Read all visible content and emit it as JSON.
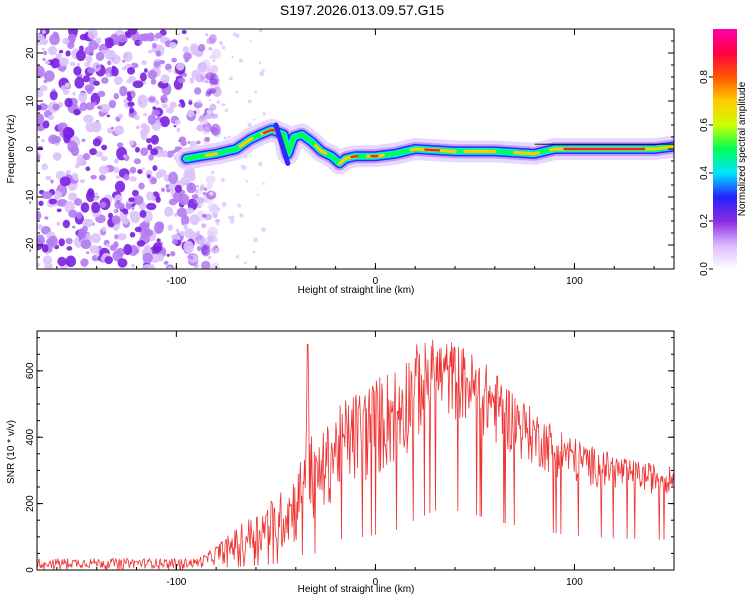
{
  "title": "S197.2026.013.09.57.G15",
  "chart_data": [
    {
      "type": "heatmap",
      "name": "spectrogram",
      "xlabel": "Height of straight line (km)",
      "ylabel": "Frequency (Hz)",
      "xlim": [
        -170,
        150
      ],
      "ylim": [
        -25,
        25
      ],
      "xticks": [
        -100,
        0,
        100
      ],
      "yticks": [
        -20,
        -10,
        0,
        10,
        20
      ],
      "colorbar": {
        "label": "Normalized spectral amplitude",
        "range": [
          0,
          1
        ],
        "ticks": [
          0.0,
          0.2,
          0.4,
          0.6,
          0.8
        ],
        "colormap": [
          "#ffffff",
          "#d9b8ff",
          "#8a2be2",
          "#2222ff",
          "#00e5ff",
          "#00ff55",
          "#ccff00",
          "#ffcc00",
          "#ff5500",
          "#ff0044",
          "#ff00aa"
        ]
      },
      "ridge": {
        "x": [
          -95,
          -88,
          -80,
          -70,
          -63,
          -58,
          -52,
          -46,
          -44,
          -41,
          -37,
          -32,
          -27,
          -22,
          -18,
          -15,
          -10,
          0,
          10,
          20,
          40,
          60,
          80,
          90,
          100,
          120,
          140,
          150
        ],
        "y": [
          -2,
          -1.5,
          -1,
          0,
          2,
          3,
          4,
          3,
          -1,
          2.5,
          3,
          1.5,
          -0.5,
          -1.5,
          -3,
          -2,
          -1.5,
          -1.5,
          -1,
          0,
          -0.5,
          -0.5,
          -1,
          0,
          0,
          0,
          0,
          0.5
        ]
      },
      "noise_region_x": [
        -170,
        -85
      ]
    },
    {
      "type": "line",
      "name": "snr",
      "xlabel": "Height of straight line (km)",
      "ylabel": "SNR (10 * v/v)",
      "xlim": [
        -170,
        150
      ],
      "ylim": [
        0,
        720
      ],
      "xticks": [
        -100,
        0,
        100
      ],
      "yticks": [
        0,
        200,
        400,
        600
      ],
      "color": "#ee3333",
      "envelope": {
        "x": [
          -170,
          -90,
          -85,
          -75,
          -65,
          -55,
          -45,
          -38,
          -34,
          -31,
          -25,
          -15,
          -5,
          10,
          20,
          30,
          40,
          50,
          60,
          70,
          80,
          90,
          100,
          110,
          120,
          130,
          140,
          150
        ],
        "low": [
          5,
          5,
          10,
          20,
          30,
          40,
          60,
          80,
          180,
          120,
          180,
          250,
          250,
          300,
          380,
          450,
          450,
          420,
          370,
          340,
          310,
          280,
          260,
          250,
          240,
          235,
          230,
          230
        ],
        "high": [
          35,
          35,
          50,
          100,
          150,
          200,
          250,
          320,
          640,
          360,
          430,
          520,
          560,
          620,
          680,
          700,
          690,
          650,
          600,
          540,
          480,
          440,
          400,
          370,
          350,
          330,
          320,
          310
        ]
      },
      "spike": {
        "x": -34,
        "y": 680
      }
    }
  ]
}
